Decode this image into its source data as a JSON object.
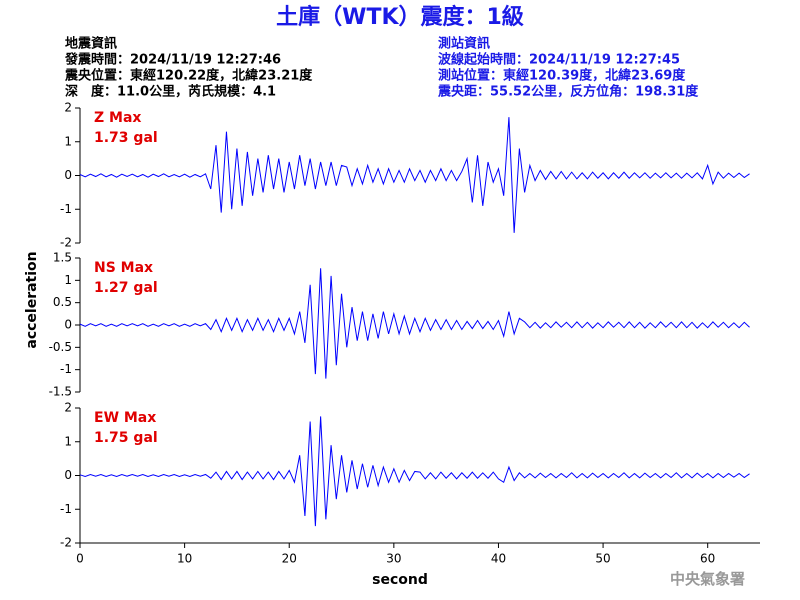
{
  "header": {
    "title": "土庫（WTK）震度：1級",
    "left": [
      "地震資訊",
      "發震時間：2024/11/19 12:27:46",
      "震央位置：東經120.22度，北緯23.21度",
      "深　度：11.0公里，芮氏規模：4.1"
    ],
    "right": [
      "測站資訊",
      "波線起始時間：2024/11/19 12:27:45",
      "測站位置：東經120.39度，北緯23.69度",
      "震央距：55.52公里，反方位角：198.31度"
    ]
  },
  "footer": "中央氣象署",
  "chart_data": [
    {
      "type": "line",
      "annotation": "Z Max",
      "max_label": "1.73 gal",
      "xlim": [
        0,
        65
      ],
      "ylim": [
        -2,
        2
      ],
      "yticks": [
        -2,
        -1,
        0,
        1,
        2
      ],
      "x": [
        0,
        0.5,
        1,
        1.5,
        2,
        2.5,
        3,
        3.5,
        4,
        4.5,
        5,
        5.5,
        6,
        6.5,
        7,
        7.5,
        8,
        8.5,
        9,
        9.5,
        10,
        10.5,
        11,
        11.5,
        12,
        12.5,
        13,
        13.5,
        14,
        14.5,
        15,
        15.5,
        16,
        16.5,
        17,
        17.5,
        18,
        18.5,
        19,
        19.5,
        20,
        20.5,
        21,
        21.5,
        22,
        22.5,
        23,
        23.5,
        24,
        24.5,
        25,
        25.5,
        26,
        26.5,
        27,
        27.5,
        28,
        28.5,
        29,
        29.5,
        30,
        30.5,
        31,
        31.5,
        32,
        32.5,
        33,
        33.5,
        34,
        34.5,
        35,
        35.5,
        36,
        36.5,
        37,
        37.5,
        38,
        38.5,
        39,
        39.5,
        40,
        40.5,
        41,
        41.5,
        42,
        42.5,
        43,
        43.5,
        44,
        44.5,
        45,
        45.5,
        46,
        46.5,
        47,
        47.5,
        48,
        48.5,
        49,
        49.5,
        50,
        50.5,
        51,
        51.5,
        52,
        52.5,
        53,
        53.5,
        54,
        54.5,
        55,
        55.5,
        56,
        56.5,
        57,
        57.5,
        58,
        58.5,
        59,
        59.5,
        60,
        60.5,
        61,
        61.5,
        62,
        62.5,
        63,
        63.5,
        64
      ],
      "series": [
        {
          "color": "#0000ff",
          "values": [
            0.03,
            -0.04,
            0.04,
            -0.03,
            0.05,
            -0.04,
            0.03,
            -0.05,
            0.04,
            -0.03,
            0.04,
            -0.04,
            0.03,
            -0.05,
            0.04,
            -0.03,
            0.05,
            -0.04,
            0.03,
            -0.04,
            0.04,
            -0.05,
            0.03,
            -0.04,
            0.05,
            -0.4,
            0.9,
            -1.1,
            1.3,
            -1.0,
            0.8,
            -0.9,
            0.7,
            -0.6,
            0.5,
            -0.5,
            0.6,
            -0.4,
            0.5,
            -0.5,
            0.4,
            -0.4,
            0.6,
            -0.3,
            0.5,
            -0.4,
            0.4,
            -0.3,
            0.4,
            -0.3,
            0.3,
            0.25,
            -0.3,
            0.2,
            -0.25,
            0.3,
            -0.2,
            0.2,
            -0.25,
            0.2,
            -0.2,
            0.15,
            -0.2,
            0.2,
            -0.15,
            0.15,
            -0.2,
            0.15,
            -0.15,
            0.2,
            -0.15,
            0.15,
            -0.15,
            0.12,
            0.5,
            -0.8,
            0.6,
            -0.9,
            0.4,
            -0.2,
            0.2,
            -0.6,
            1.73,
            -1.7,
            0.8,
            -0.5,
            0.3,
            -0.15,
            0.15,
            -0.12,
            0.12,
            -0.1,
            0.12,
            -0.1,
            0.1,
            -0.1,
            0.08,
            -0.1,
            0.1,
            -0.08,
            0.08,
            -0.1,
            0.08,
            -0.08,
            0.1,
            -0.08,
            0.08,
            -0.07,
            0.08,
            -0.08,
            0.07,
            -0.07,
            0.08,
            -0.07,
            0.07,
            -0.08,
            0.07,
            -0.07,
            0.08,
            -0.1,
            0.3,
            -0.25,
            0.1,
            -0.08,
            0.07,
            -0.06,
            0.07,
            -0.06,
            0.05
          ]
        }
      ]
    },
    {
      "type": "line",
      "annotation": "NS Max",
      "max_label": "1.27 gal",
      "ylabel": "acceleration",
      "xlim": [
        0,
        65
      ],
      "ylim": [
        -1.5,
        1.5
      ],
      "yticks": [
        -1.5,
        -1,
        -0.5,
        0,
        0.5,
        1,
        1.5
      ],
      "x": [
        0,
        0.5,
        1,
        1.5,
        2,
        2.5,
        3,
        3.5,
        4,
        4.5,
        5,
        5.5,
        6,
        6.5,
        7,
        7.5,
        8,
        8.5,
        9,
        9.5,
        10,
        10.5,
        11,
        11.5,
        12,
        12.5,
        13,
        13.5,
        14,
        14.5,
        15,
        15.5,
        16,
        16.5,
        17,
        17.5,
        18,
        18.5,
        19,
        19.5,
        20,
        20.5,
        21,
        21.5,
        22,
        22.5,
        23,
        23.5,
        24,
        24.5,
        25,
        25.5,
        26,
        26.5,
        27,
        27.5,
        28,
        28.5,
        29,
        29.5,
        30,
        30.5,
        31,
        31.5,
        32,
        32.5,
        33,
        33.5,
        34,
        34.5,
        35,
        35.5,
        36,
        36.5,
        37,
        37.5,
        38,
        38.5,
        39,
        39.5,
        40,
        40.5,
        41,
        41.5,
        42,
        42.5,
        43,
        43.5,
        44,
        44.5,
        45,
        45.5,
        46,
        46.5,
        47,
        47.5,
        48,
        48.5,
        49,
        49.5,
        50,
        50.5,
        51,
        51.5,
        52,
        52.5,
        53,
        53.5,
        54,
        54.5,
        55,
        55.5,
        56,
        56.5,
        57,
        57.5,
        58,
        58.5,
        59,
        59.5,
        60,
        60.5,
        61,
        61.5,
        62,
        62.5,
        63,
        63.5,
        64
      ],
      "series": [
        {
          "color": "#0000ff",
          "values": [
            0.02,
            -0.03,
            0.03,
            -0.02,
            0.03,
            -0.03,
            0.02,
            -0.03,
            0.03,
            -0.02,
            0.03,
            -0.02,
            0.03,
            -0.03,
            0.02,
            -0.03,
            0.03,
            -0.02,
            0.03,
            -0.03,
            0.02,
            -0.03,
            0.03,
            -0.02,
            0.03,
            -0.1,
            0.12,
            -0.15,
            0.15,
            -0.12,
            0.15,
            -0.15,
            0.12,
            -0.12,
            0.15,
            -0.12,
            0.12,
            -0.15,
            0.15,
            -0.12,
            0.15,
            -0.2,
            0.3,
            -0.4,
            0.9,
            -1.1,
            1.27,
            -1.2,
            1.1,
            -0.9,
            0.7,
            -0.5,
            0.4,
            -0.35,
            0.3,
            -0.35,
            0.25,
            -0.3,
            0.3,
            -0.2,
            0.25,
            -0.2,
            0.2,
            -0.2,
            0.15,
            -0.15,
            0.15,
            -0.12,
            0.12,
            -0.1,
            0.12,
            -0.1,
            0.1,
            -0.1,
            0.08,
            -0.08,
            0.1,
            -0.08,
            0.08,
            -0.1,
            0.1,
            -0.25,
            0.3,
            -0.2,
            0.15,
            0.07,
            -0.06,
            0.06,
            -0.07,
            0.05,
            -0.06,
            0.07,
            -0.05,
            0.06,
            -0.06,
            0.07,
            -0.06,
            0.06,
            -0.07,
            0.05,
            -0.06,
            0.07,
            -0.05,
            0.06,
            -0.06,
            0.07,
            -0.06,
            0.06,
            -0.07,
            0.05,
            -0.06,
            0.07,
            -0.05,
            0.06,
            -0.06,
            0.07,
            -0.06,
            0.06,
            -0.07,
            0.05,
            -0.06,
            0.07,
            -0.05,
            0.06,
            -0.06,
            0.05,
            -0.06,
            0.06,
            -0.05
          ]
        }
      ]
    },
    {
      "type": "line",
      "annotation": "EW Max",
      "max_label": "1.75 gal",
      "xlabel": "second",
      "xlim": [
        0,
        65
      ],
      "ylim": [
        -2,
        2
      ],
      "yticks": [
        -2,
        -1,
        0,
        1,
        2
      ],
      "xticks": [
        0,
        10,
        20,
        30,
        40,
        50,
        60
      ],
      "x": [
        0,
        0.5,
        1,
        1.5,
        2,
        2.5,
        3,
        3.5,
        4,
        4.5,
        5,
        5.5,
        6,
        6.5,
        7,
        7.5,
        8,
        8.5,
        9,
        9.5,
        10,
        10.5,
        11,
        11.5,
        12,
        12.5,
        13,
        13.5,
        14,
        14.5,
        15,
        15.5,
        16,
        16.5,
        17,
        17.5,
        18,
        18.5,
        19,
        19.5,
        20,
        20.5,
        21,
        21.5,
        22,
        22.5,
        23,
        23.5,
        24,
        24.5,
        25,
        25.5,
        26,
        26.5,
        27,
        27.5,
        28,
        28.5,
        29,
        29.5,
        30,
        30.5,
        31,
        31.5,
        32,
        32.5,
        33,
        33.5,
        34,
        34.5,
        35,
        35.5,
        36,
        36.5,
        37,
        37.5,
        38,
        38.5,
        39,
        39.5,
        40,
        40.5,
        41,
        41.5,
        42,
        42.5,
        43,
        43.5,
        44,
        44.5,
        45,
        45.5,
        46,
        46.5,
        47,
        47.5,
        48,
        48.5,
        49,
        49.5,
        50,
        50.5,
        51,
        51.5,
        52,
        52.5,
        53,
        53.5,
        54,
        54.5,
        55,
        55.5,
        56,
        56.5,
        57,
        57.5,
        58,
        58.5,
        59,
        59.5,
        60,
        60.5,
        61,
        61.5,
        62,
        62.5,
        63,
        63.5,
        64
      ],
      "series": [
        {
          "color": "#0000ff",
          "values": [
            0.02,
            -0.03,
            0.03,
            -0.02,
            0.03,
            -0.03,
            0.02,
            -0.03,
            0.03,
            -0.02,
            0.03,
            -0.02,
            0.03,
            -0.03,
            0.02,
            -0.03,
            0.03,
            -0.02,
            0.03,
            -0.03,
            0.02,
            -0.03,
            0.03,
            -0.02,
            0.03,
            -0.08,
            0.1,
            -0.12,
            0.12,
            -0.1,
            0.12,
            -0.12,
            0.1,
            -0.1,
            0.12,
            -0.1,
            0.1,
            -0.12,
            0.12,
            -0.1,
            0.15,
            -0.2,
            0.6,
            -1.2,
            1.6,
            -1.5,
            1.75,
            -1.3,
            0.9,
            -0.7,
            0.6,
            -0.5,
            0.45,
            -0.4,
            0.35,
            -0.35,
            0.3,
            -0.3,
            0.25,
            -0.2,
            0.2,
            -0.2,
            0.15,
            -0.15,
            0.12,
            0.1,
            -0.1,
            0.08,
            -0.1,
            0.1,
            -0.08,
            0.08,
            -0.1,
            0.08,
            -0.08,
            0.1,
            -0.08,
            0.08,
            -0.08,
            0.1,
            -0.1,
            -0.2,
            0.25,
            -0.15,
            0.08,
            -0.07,
            0.06,
            -0.07,
            0.07,
            -0.06,
            0.06,
            -0.07,
            0.06,
            -0.06,
            0.08,
            -0.07,
            0.06,
            -0.07,
            0.07,
            -0.06,
            0.06,
            -0.07,
            0.06,
            -0.06,
            0.08,
            -0.07,
            0.06,
            -0.07,
            0.07,
            -0.06,
            0.06,
            -0.07,
            0.06,
            -0.06,
            0.08,
            -0.07,
            0.06,
            -0.07,
            0.07,
            -0.06,
            0.06,
            -0.07,
            0.06,
            -0.06,
            0.06,
            -0.05,
            0.06,
            -0.06,
            0.05
          ]
        }
      ]
    }
  ]
}
